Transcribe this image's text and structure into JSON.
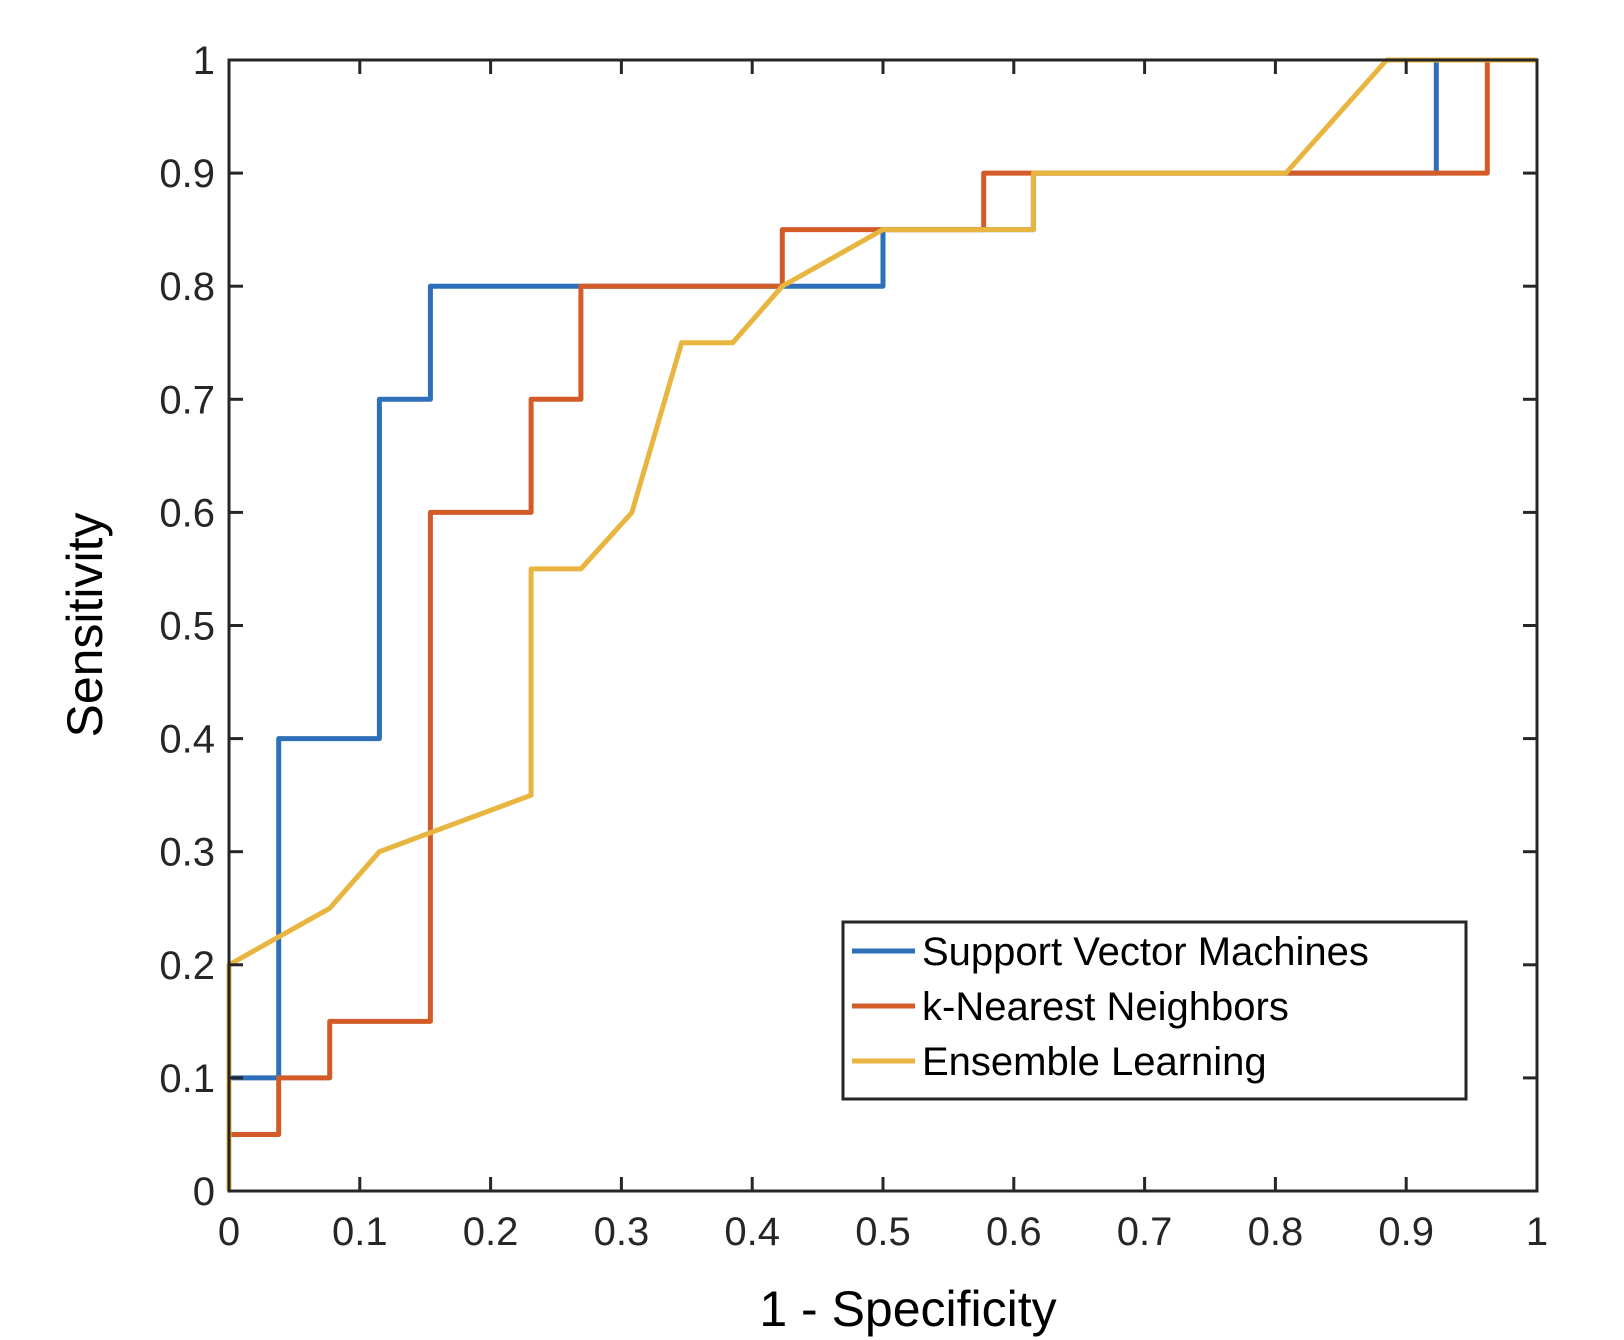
{
  "chart_data": {
    "type": "line",
    "title": "",
    "xlabel": "1 - Specificity",
    "ylabel": "Sensitivity",
    "xlim": [
      0,
      1
    ],
    "ylim": [
      0,
      1
    ],
    "xticks": [
      0,
      0.1,
      0.2,
      0.3,
      0.4,
      0.5,
      0.6,
      0.7,
      0.8,
      0.9,
      1
    ],
    "yticks": [
      0,
      0.1,
      0.2,
      0.3,
      0.4,
      0.5,
      0.6,
      0.7,
      0.8,
      0.9,
      1
    ],
    "xtick_labels": [
      "0",
      "0.1",
      "0.2",
      "0.3",
      "0.4",
      "0.5",
      "0.6",
      "0.7",
      "0.8",
      "0.9",
      "1"
    ],
    "ytick_labels": [
      "0",
      "0.1",
      "0.2",
      "0.3",
      "0.4",
      "0.5",
      "0.6",
      "0.7",
      "0.8",
      "0.9",
      "1"
    ],
    "grid": false,
    "legend_position": "bottom-right",
    "series": [
      {
        "name": "Support Vector Machines",
        "color": "#2e6fba",
        "x": [
          0,
          0,
          0.038,
          0.038,
          0.115,
          0.115,
          0.154,
          0.154,
          0.423,
          0.5,
          0.5,
          0.577,
          0.615,
          0.615,
          0.808,
          0.923,
          0.923,
          1
        ],
        "y": [
          0,
          0.1,
          0.1,
          0.4,
          0.4,
          0.7,
          0.7,
          0.8,
          0.8,
          0.8,
          0.85,
          0.85,
          0.85,
          0.9,
          0.9,
          0.9,
          1,
          1
        ]
      },
      {
        "name": "k-Nearest Neighbors",
        "color": "#d35b27",
        "x": [
          0,
          0,
          0.038,
          0.038,
          0.077,
          0.077,
          0.154,
          0.154,
          0.231,
          0.231,
          0.269,
          0.269,
          0.423,
          0.423,
          0.5,
          0.577,
          0.577,
          0.962,
          0.962,
          1
        ],
        "y": [
          0,
          0.05,
          0.05,
          0.1,
          0.1,
          0.15,
          0.15,
          0.6,
          0.6,
          0.7,
          0.7,
          0.8,
          0.8,
          0.85,
          0.85,
          0.85,
          0.9,
          0.9,
          1,
          1
        ]
      },
      {
        "name": "Ensemble Learning",
        "color": "#e8b640",
        "x": [
          0,
          0,
          0.077,
          0.115,
          0.231,
          0.231,
          0.269,
          0.308,
          0.346,
          0.385,
          0.423,
          0.5,
          0.615,
          0.615,
          0.808,
          0.885,
          1
        ],
        "y": [
          0,
          0.2,
          0.25,
          0.3,
          0.35,
          0.55,
          0.55,
          0.6,
          0.75,
          0.75,
          0.8,
          0.85,
          0.85,
          0.9,
          0.9,
          1,
          1
        ]
      }
    ]
  }
}
